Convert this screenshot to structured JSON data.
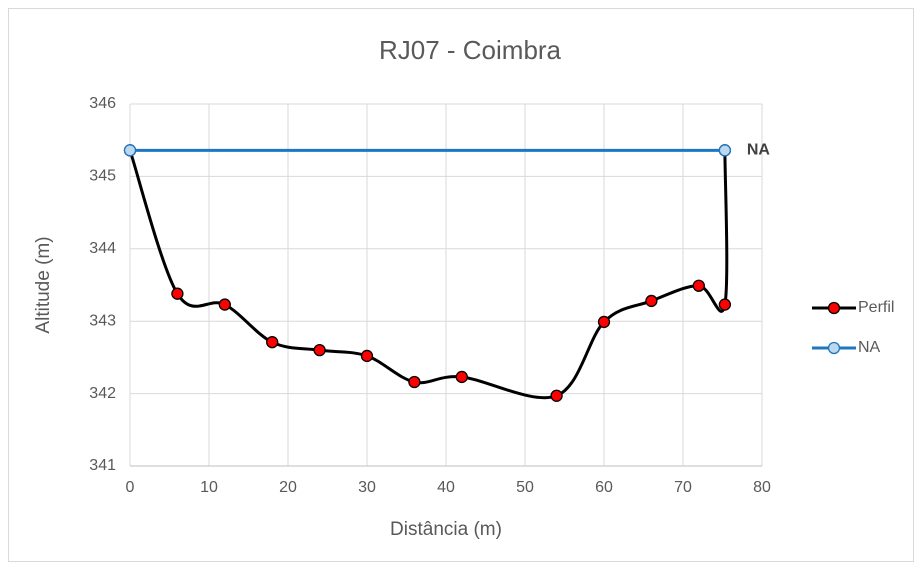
{
  "chart_data": {
    "type": "line",
    "title": "RJ07 - Coimbra",
    "x_label": "Distância (m)",
    "y_label": "Altitude (m)",
    "xlim": [
      0,
      80
    ],
    "xticks": [
      0,
      10,
      20,
      30,
      40,
      50,
      60,
      70,
      80
    ],
    "ylim": [
      341,
      346
    ],
    "yticks": [
      341,
      342,
      343,
      344,
      345,
      346
    ],
    "grid": true,
    "smooth": true,
    "legend": "right",
    "annotation": "NA",
    "series": [
      {
        "name": "Perfil",
        "color": "#000000",
        "marker_color": "#ff0000",
        "x": [
          0,
          6,
          12,
          18,
          24,
          30,
          36,
          42,
          54,
          60,
          66,
          72,
          75.3,
          75.3
        ],
        "values": [
          345.36,
          343.38,
          343.23,
          342.71,
          342.6,
          342.52,
          342.16,
          342.23,
          341.97,
          342.99,
          343.28,
          343.49,
          343.23,
          345.36
        ]
      },
      {
        "name": "NA",
        "color": "#1f77c0",
        "marker_color": "#bdd7ee",
        "x": [
          0,
          75.3
        ],
        "values": [
          345.36,
          345.36
        ]
      }
    ]
  }
}
